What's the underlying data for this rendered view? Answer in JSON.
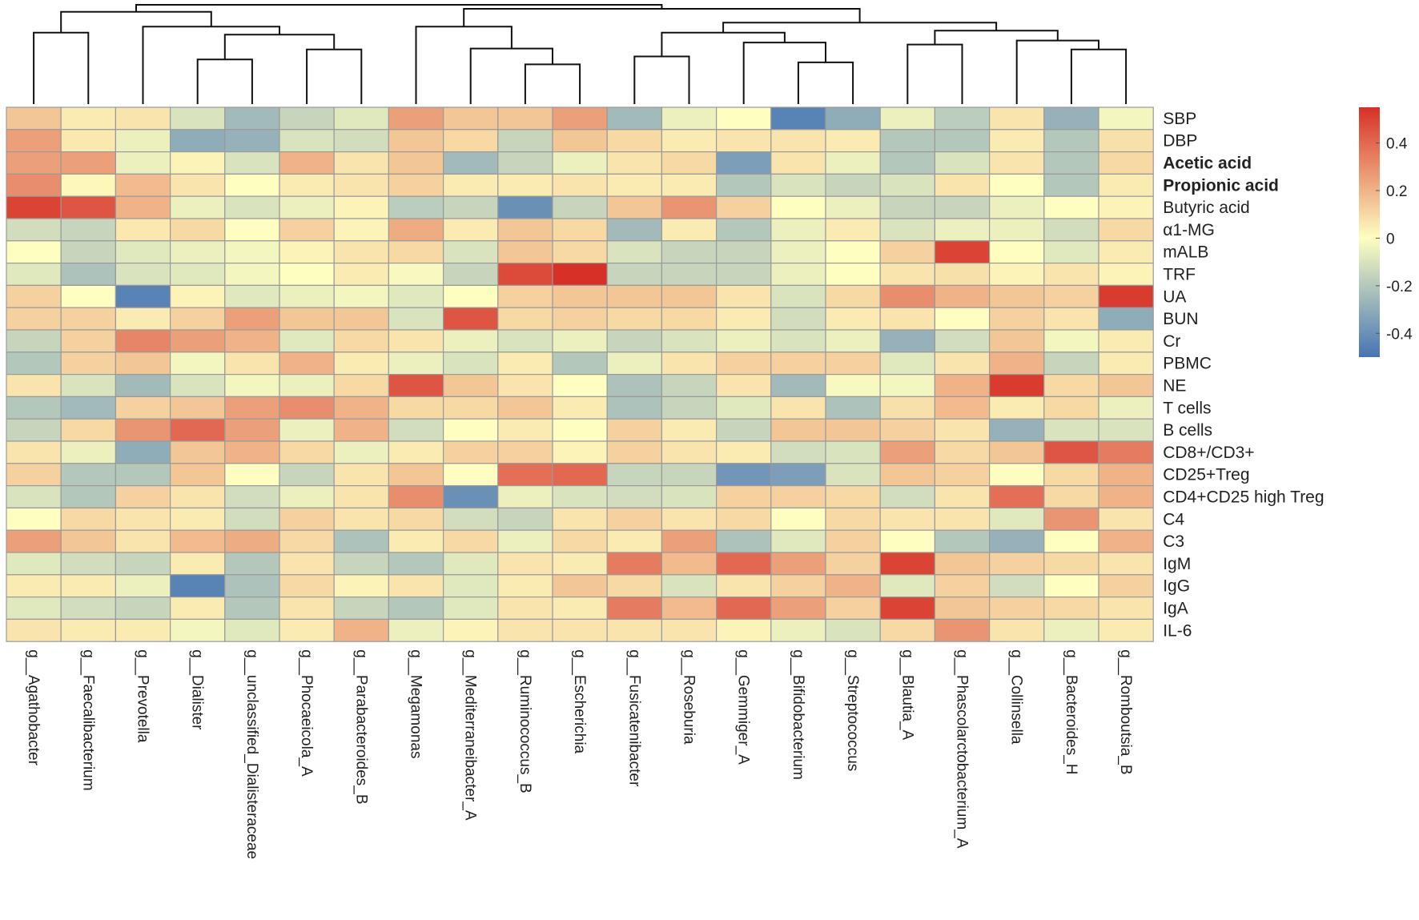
{
  "chart_data": {
    "type": "heatmap",
    "title": "",
    "xlabel": "",
    "ylabel": "",
    "columns": [
      "g__Agathobacter",
      "g__Faecalibacterium",
      "g__Prevotella",
      "g__Dialister",
      "g__unclassified_Dialisteraceae",
      "g__Phocaeicola_A",
      "g__Parabacteroides_B",
      "g__Megamonas",
      "g__Mediterraneibacter_A",
      "g__Ruminococcus_B",
      "g__Escherichia",
      "g__Fusicatenibacter",
      "g__Roseburia",
      "g__Gemmiger_A",
      "g__Bifidobacterium",
      "g__Streptococcus",
      "g__Blautia_A",
      "g__Phascolarctobacterium_A",
      "g__Collinsella",
      "g__Bacteroides_H",
      "g__Romboutsia_B"
    ],
    "rows": [
      "SBP",
      "DBP",
      "Acetic acid",
      "Propionic acid",
      "Butyric acid",
      "α1-MG",
      "mALB",
      "TRF",
      "UA",
      "BUN",
      "Cr",
      "PBMC",
      "NE",
      "T cells",
      "B cells",
      "CD8+/CD3+",
      "CD25+Treg",
      "CD4+CD25 high Treg",
      "C4",
      "C3",
      "IgM",
      "IgG",
      "IgA",
      "IL-6"
    ],
    "bold_rows": [
      "Acetic acid",
      "Propionic acid"
    ],
    "values": [
      [
        0.15,
        0.05,
        0.07,
        -0.1,
        -0.25,
        -0.15,
        -0.08,
        0.25,
        0.15,
        0.15,
        0.25,
        -0.25,
        -0.05,
        0.0,
        -0.45,
        -0.3,
        -0.05,
        -0.18,
        0.07,
        -0.28,
        -0.03
      ],
      [
        0.25,
        0.06,
        -0.05,
        -0.3,
        -0.28,
        -0.1,
        -0.12,
        0.15,
        0.1,
        -0.15,
        0.15,
        0.1,
        0.05,
        0.07,
        0.07,
        0.05,
        -0.2,
        -0.2,
        0.05,
        -0.2,
        0.08
      ],
      [
        0.25,
        0.25,
        -0.05,
        0.03,
        -0.1,
        0.2,
        0.07,
        0.15,
        -0.25,
        -0.15,
        -0.05,
        0.07,
        0.1,
        -0.35,
        0.07,
        -0.05,
        -0.2,
        -0.1,
        0.07,
        -0.2,
        0.1
      ],
      [
        0.3,
        0.02,
        0.18,
        0.07,
        0.0,
        0.05,
        0.07,
        0.12,
        0.05,
        0.05,
        0.07,
        0.05,
        0.05,
        -0.2,
        -0.1,
        -0.15,
        -0.1,
        0.07,
        0.0,
        -0.2,
        0.05
      ],
      [
        0.5,
        0.45,
        0.2,
        -0.05,
        -0.1,
        -0.05,
        0.03,
        -0.18,
        -0.15,
        -0.4,
        -0.15,
        0.15,
        0.28,
        0.12,
        0.0,
        -0.05,
        -0.15,
        -0.15,
        -0.05,
        0.0,
        0.03
      ],
      [
        -0.12,
        -0.15,
        0.06,
        0.1,
        0.0,
        0.12,
        0.03,
        0.22,
        0.05,
        0.15,
        0.1,
        -0.25,
        0.05,
        -0.2,
        -0.05,
        0.05,
        -0.1,
        -0.05,
        -0.05,
        -0.12,
        0.1
      ],
      [
        0.0,
        -0.15,
        -0.08,
        -0.05,
        -0.03,
        0.03,
        0.07,
        0.1,
        -0.1,
        0.15,
        0.1,
        -0.1,
        -0.15,
        -0.15,
        -0.05,
        0.0,
        0.12,
        0.5,
        0.0,
        -0.08,
        0.05
      ],
      [
        -0.08,
        -0.22,
        -0.1,
        -0.08,
        -0.03,
        0.0,
        0.05,
        -0.02,
        -0.15,
        0.48,
        0.55,
        -0.15,
        -0.15,
        -0.15,
        -0.05,
        0.0,
        0.07,
        0.08,
        0.03,
        0.07,
        0.03
      ],
      [
        0.12,
        0.0,
        -0.45,
        0.03,
        -0.08,
        -0.05,
        -0.03,
        -0.08,
        0.0,
        0.12,
        0.15,
        0.15,
        0.15,
        0.07,
        -0.1,
        0.1,
        0.3,
        0.2,
        0.15,
        0.12,
        0.52
      ],
      [
        0.12,
        0.12,
        0.05,
        0.12,
        0.25,
        0.15,
        0.15,
        -0.1,
        0.45,
        0.1,
        0.12,
        0.1,
        0.1,
        0.05,
        -0.12,
        0.05,
        0.07,
        0.0,
        0.12,
        0.07,
        -0.3
      ],
      [
        -0.15,
        0.12,
        0.32,
        0.25,
        0.2,
        -0.08,
        0.1,
        0.07,
        -0.05,
        -0.1,
        -0.05,
        -0.15,
        -0.1,
        -0.05,
        -0.1,
        -0.05,
        -0.28,
        -0.12,
        0.15,
        -0.03,
        0.05
      ],
      [
        -0.2,
        0.12,
        0.15,
        -0.03,
        0.07,
        0.2,
        0.05,
        -0.05,
        -0.1,
        0.05,
        -0.2,
        -0.05,
        0.07,
        0.12,
        0.12,
        0.12,
        -0.08,
        0.07,
        0.2,
        -0.15,
        0.05
      ],
      [
        0.07,
        -0.1,
        -0.25,
        -0.1,
        -0.03,
        -0.05,
        0.1,
        0.45,
        0.15,
        0.07,
        0.0,
        -0.22,
        -0.15,
        0.07,
        -0.25,
        -0.02,
        -0.03,
        0.2,
        0.52,
        0.1,
        0.15
      ],
      [
        -0.2,
        -0.25,
        0.12,
        0.15,
        0.25,
        0.3,
        0.2,
        0.1,
        0.1,
        0.15,
        0.05,
        -0.22,
        -0.15,
        -0.08,
        0.07,
        -0.22,
        0.08,
        0.18,
        0.05,
        0.1,
        -0.05
      ],
      [
        -0.15,
        0.1,
        0.28,
        0.4,
        0.25,
        -0.05,
        0.2,
        -0.12,
        0.0,
        0.05,
        0.0,
        0.12,
        0.05,
        -0.15,
        0.15,
        0.15,
        0.12,
        0.07,
        -0.28,
        -0.1,
        -0.1
      ],
      [
        0.07,
        -0.05,
        -0.3,
        0.15,
        0.2,
        0.1,
        -0.05,
        0.05,
        0.12,
        0.12,
        0.03,
        0.12,
        0.07,
        0.05,
        -0.12,
        -0.1,
        0.25,
        0.1,
        0.15,
        0.45,
        0.35
      ],
      [
        0.12,
        -0.2,
        -0.2,
        0.15,
        0.0,
        -0.15,
        0.07,
        0.15,
        0.0,
        0.38,
        0.4,
        -0.15,
        -0.15,
        -0.38,
        -0.35,
        -0.1,
        0.15,
        0.12,
        0.0,
        0.1,
        0.2
      ],
      [
        -0.1,
        -0.2,
        0.12,
        0.07,
        -0.12,
        -0.05,
        0.07,
        0.3,
        -0.4,
        -0.05,
        -0.1,
        -0.12,
        -0.1,
        0.12,
        0.12,
        0.1,
        -0.12,
        0.07,
        0.38,
        0.1,
        0.2
      ],
      [
        0.0,
        0.1,
        0.07,
        0.05,
        -0.12,
        0.12,
        0.07,
        0.1,
        -0.12,
        -0.15,
        0.07,
        0.12,
        0.07,
        0.1,
        0.0,
        0.1,
        0.07,
        0.07,
        -0.08,
        0.28,
        0.07
      ],
      [
        0.25,
        0.15,
        0.07,
        0.18,
        0.22,
        0.1,
        -0.22,
        0.05,
        0.1,
        -0.05,
        0.1,
        0.05,
        0.25,
        -0.22,
        -0.08,
        0.12,
        0.0,
        -0.2,
        -0.28,
        0.0,
        0.2
      ],
      [
        -0.08,
        -0.12,
        -0.15,
        0.05,
        -0.2,
        0.07,
        -0.15,
        -0.2,
        -0.08,
        0.07,
        0.05,
        0.35,
        0.18,
        0.4,
        0.25,
        0.12,
        0.5,
        0.15,
        0.12,
        0.1,
        0.07
      ],
      [
        0.05,
        0.05,
        -0.05,
        -0.45,
        -0.22,
        0.1,
        0.03,
        0.07,
        -0.08,
        0.05,
        0.15,
        0.1,
        -0.1,
        0.07,
        0.12,
        0.2,
        -0.08,
        0.12,
        -0.12,
        0.0,
        0.12
      ],
      [
        -0.08,
        -0.12,
        -0.15,
        0.05,
        -0.2,
        0.07,
        -0.15,
        -0.2,
        -0.08,
        0.07,
        0.05,
        0.35,
        0.18,
        0.4,
        0.25,
        0.12,
        0.5,
        0.15,
        0.12,
        0.1,
        0.07
      ],
      [
        0.07,
        0.05,
        0.05,
        -0.03,
        -0.08,
        0.05,
        0.2,
        -0.05,
        0.03,
        0.07,
        0.07,
        0.07,
        0.07,
        0.03,
        -0.05,
        -0.1,
        0.1,
        0.28,
        0.07,
        -0.05,
        0.05
      ]
    ],
    "color_scale": {
      "range": [
        -0.5,
        0.55
      ],
      "low_color": "#4575b4",
      "mid_color": "#fefec0",
      "high_color": "#d73027",
      "ticks": [
        0.4,
        0.2,
        0,
        -0.2,
        -0.4
      ],
      "tick_labels": [
        "0.4",
        "0.2",
        "0",
        "-0.2",
        "-0.4"
      ]
    },
    "legend": "right",
    "column_dendrogram": true,
    "cell_border_color": "#9a9a9a"
  }
}
